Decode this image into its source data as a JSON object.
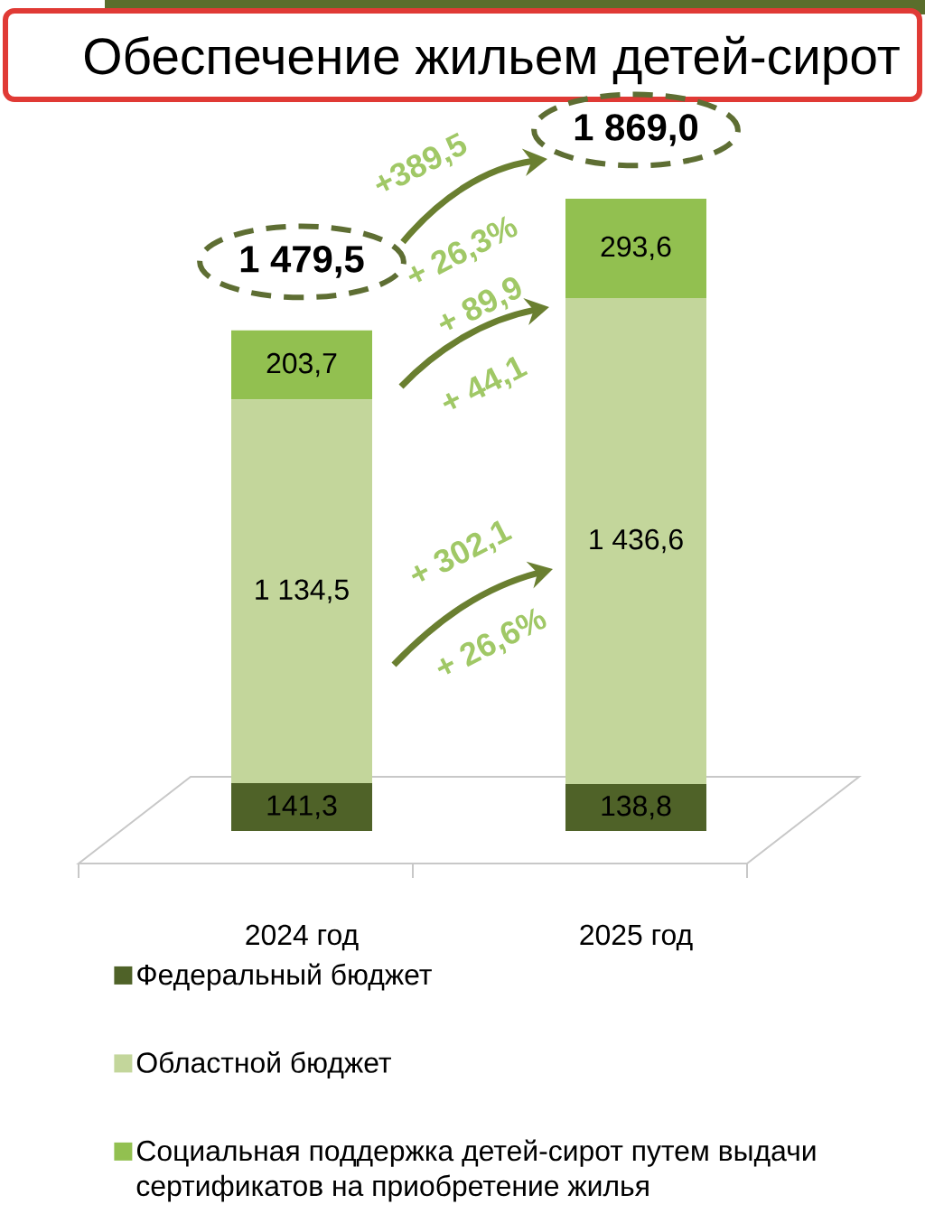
{
  "chart_data": {
    "type": "bar",
    "title": "Обеспечение жильем детей-сирот",
    "categories": [
      "2024 год",
      "2025 год"
    ],
    "stacked": true,
    "series": [
      {
        "name": "Федеральный бюджет",
        "color": "#4f6228",
        "values": [
          141.3,
          138.8
        ],
        "value_labels": [
          "141,3",
          "138,8"
        ]
      },
      {
        "name": "Областной бюджет",
        "color": "#c3d69b",
        "values": [
          1134.5,
          1436.6
        ],
        "value_labels": [
          "1 134,5",
          "1 436,6"
        ]
      },
      {
        "name": "Социальная поддержка детей-сирот путем выдачи сертификатов на приобретение жилья",
        "color": "#92c050",
        "values": [
          203.7,
          293.6
        ],
        "value_labels": [
          "203,7",
          "293,6"
        ]
      }
    ],
    "totals": [
      "1 479,5",
      "1 869,0"
    ],
    "annotations": [
      "+389,5",
      "+ 26,3%",
      "+ 89,9",
      "+ 44,1",
      "+ 302,1",
      "+ 26,6%"
    ],
    "legend": "bottom"
  }
}
